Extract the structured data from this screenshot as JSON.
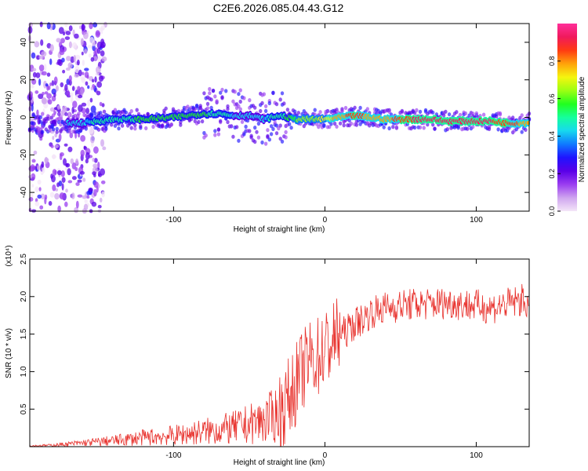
{
  "title": "C2E6.2026.085.04.43.G12",
  "chart_data": [
    {
      "type": "heatmap",
      "xlabel": "Height of straight line (km)",
      "ylabel": "Frequency (Hz)",
      "xlim": [
        -195,
        135
      ],
      "ylim": [
        -50,
        50
      ],
      "xticks": [
        -100,
        0,
        100
      ],
      "yticks": [
        -40,
        -20,
        0,
        20,
        40
      ],
      "colorbar": {
        "label": "Normalized spectral amplitude",
        "range": [
          0,
          1
        ],
        "ticks": [
          "0.0",
          "0.2",
          "0.4",
          "0.6",
          "0.8"
        ],
        "colors": [
          "#f4e6f8",
          "#cfa4ef",
          "#9a3df0",
          "#5a00e8",
          "#1f14ff",
          "#0f79ff",
          "#17d9ee",
          "#16ff9c",
          "#21ff1f",
          "#9cff12",
          "#f5f50f",
          "#ffa20a",
          "#ff3b12",
          "#f01a5c",
          "#ff2f9a"
        ]
      },
      "series": [
        {
          "name": "dominant frequency ridge (Hz)",
          "x": [
            -195,
            -180,
            -160,
            -140,
            -120,
            -100,
            -80,
            -70,
            -60,
            -50,
            -40,
            -30,
            -20,
            -10,
            0,
            10,
            20,
            30,
            40,
            50,
            60,
            70,
            80,
            90,
            100,
            110,
            120,
            135
          ],
          "y": [
            -3,
            -3,
            -3,
            -1,
            -1,
            0,
            2,
            2,
            1,
            1,
            -1,
            1,
            -1,
            -1,
            -1,
            0,
            1,
            0,
            -1,
            -1,
            -1,
            -1,
            -2,
            -2,
            -2,
            -2,
            -3,
            -3
          ],
          "amp": [
            0.35,
            0.45,
            0.45,
            0.5,
            0.55,
            0.55,
            0.55,
            0.5,
            0.45,
            0.45,
            0.45,
            0.5,
            0.6,
            0.65,
            0.7,
            0.8,
            0.85,
            0.8,
            0.8,
            0.85,
            0.9,
            0.9,
            0.9,
            0.9,
            0.9,
            0.9,
            0.85,
            0.8
          ]
        }
      ]
    },
    {
      "type": "line",
      "xlabel": "Height of straight line (km)",
      "ylabel": "SNR (10 * v/v)",
      "yscale_label": "(x10⁴)",
      "xlim": [
        -195,
        135
      ],
      "ylim": [
        0,
        2.5
      ],
      "xticks": [
        -100,
        0,
        100
      ],
      "yticks": [
        0.5,
        1.0,
        1.5,
        2.0,
        2.5
      ],
      "series": [
        {
          "name": "SNR",
          "color": "#e8322d",
          "x": [
            -195,
            -180,
            -160,
            -140,
            -120,
            -100,
            -80,
            -60,
            -50,
            -40,
            -30,
            -25,
            -20,
            -15,
            -10,
            -5,
            0,
            5,
            10,
            15,
            20,
            25,
            30,
            40,
            50,
            60,
            70,
            80,
            90,
            100,
            110,
            120,
            130,
            135
          ],
          "y": [
            0.01,
            0.02,
            0.05,
            0.08,
            0.12,
            0.15,
            0.2,
            0.25,
            0.3,
            0.35,
            0.45,
            0.6,
            0.8,
            1.0,
            1.15,
            1.2,
            1.3,
            1.4,
            1.5,
            1.55,
            1.65,
            1.7,
            1.78,
            1.85,
            1.88,
            1.9,
            1.9,
            1.92,
            1.9,
            1.88,
            1.85,
            1.9,
            1.95,
            1.9
          ]
        }
      ]
    }
  ]
}
